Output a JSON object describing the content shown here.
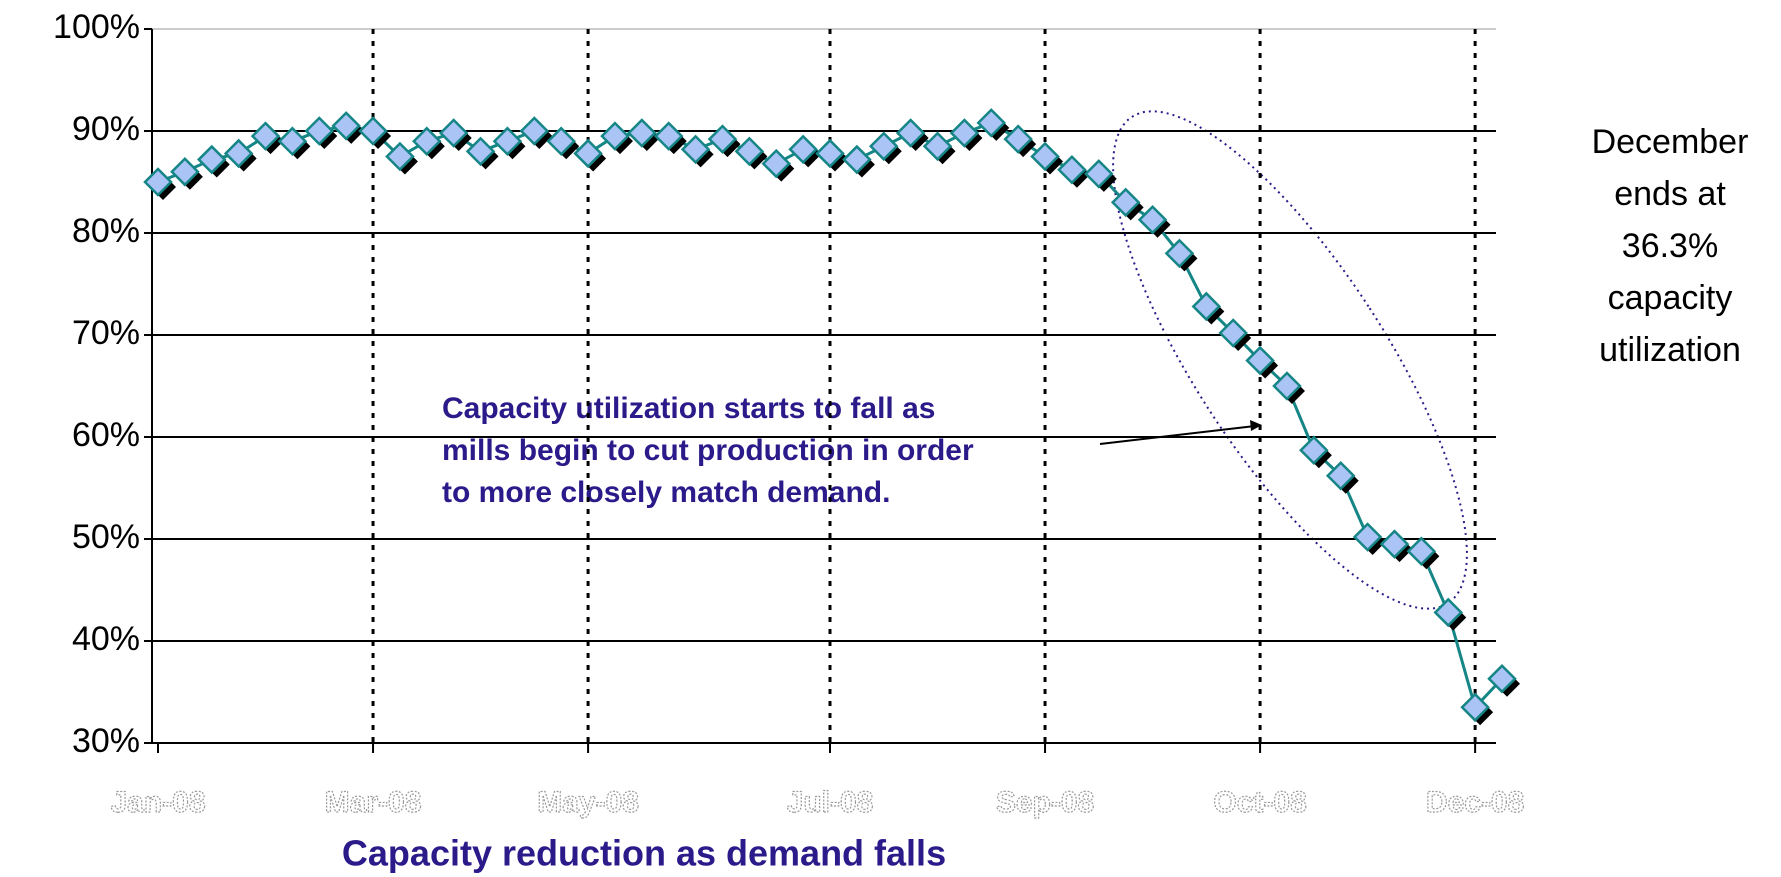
{
  "chart_data": {
    "type": "line",
    "title": "Capacity reduction as demand falls",
    "annotation": [
      "Capacity utilization starts to fall as",
      "mills begin to cut production in order",
      "to more closely match demand."
    ],
    "note": [
      "December",
      "ends at",
      "36.3%",
      "capacity",
      "utilization"
    ],
    "categories": [
      "Jan-08",
      null,
      null,
      null,
      null,
      null,
      null,
      null,
      "Mar-08",
      null,
      null,
      null,
      null,
      null,
      null,
      null,
      "May-08",
      null,
      null,
      null,
      null,
      null,
      null,
      null,
      null,
      "Jul-08",
      null,
      null,
      null,
      null,
      null,
      null,
      null,
      "Sep-08",
      null,
      null,
      null,
      null,
      null,
      null,
      null,
      "Oct-08",
      null,
      null,
      null,
      null,
      null,
      null,
      null,
      "Dec-08",
      null
    ],
    "values": [
      85,
      86,
      87.2,
      87.8,
      89.5,
      89,
      90,
      90.5,
      90,
      87.5,
      89,
      89.8,
      88,
      89,
      90,
      89,
      87.8,
      89.5,
      89.8,
      89.5,
      88.2,
      89.2,
      88,
      86.8,
      88.2,
      87.8,
      87.2,
      88.5,
      89.8,
      88.5,
      89.8,
      90.8,
      89.2,
      87.5,
      86.2,
      85.8,
      83,
      81.3,
      78,
      72.8,
      70.2,
      67.5,
      65,
      58.7,
      56.2,
      50.2,
      49.5,
      48.8,
      42.8,
      33.5,
      36.3
    ],
    "color": "#158585",
    "marker_color": "#a9c4f5",
    "ylim": [
      30,
      100
    ],
    "yticks": [
      {
        "value": 30,
        "label": "30%"
      },
      {
        "value": 40,
        "label": "40%"
      },
      {
        "value": 50,
        "label": "50%"
      },
      {
        "value": 60,
        "label": "60%"
      },
      {
        "value": 70,
        "label": "70%"
      },
      {
        "value": 80,
        "label": "80%"
      },
      {
        "value": 90,
        "label": "90%"
      },
      {
        "value": 100,
        "label": "100%"
      }
    ],
    "grid": true
  }
}
